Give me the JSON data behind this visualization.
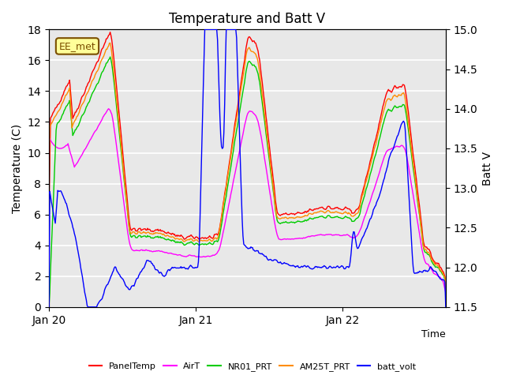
{
  "title": "Temperature and Batt V",
  "xlabel": "Time",
  "ylabel_left": "Temperature (C)",
  "ylabel_right": "Batt V",
  "ylim_left": [
    0,
    18
  ],
  "ylim_right": [
    11.5,
    15.0
  ],
  "yticks_left": [
    0,
    2,
    4,
    6,
    8,
    10,
    12,
    14,
    16,
    18
  ],
  "yticks_right": [
    11.5,
    12.0,
    12.5,
    13.0,
    13.5,
    14.0,
    14.5,
    15.0
  ],
  "xtick_labels": [
    "Jan 20",
    "Jan 21",
    "Jan 22"
  ],
  "xtick_positions": [
    0,
    1,
    2
  ],
  "annotation_text": "EE_met",
  "annotation_color": "#7B4F00",
  "annotation_bg": "#FFFF99",
  "series_colors": {
    "PanelTemp": "#FF0000",
    "AirT": "#FF00FF",
    "NR01_PRT": "#00CC00",
    "AM25T_PRT": "#FF8C00",
    "batt_volt": "#0000FF"
  },
  "legend_entries": [
    "PanelTemp",
    "AirT",
    "NR01_PRT",
    "AM25T_PRT",
    "batt_volt"
  ],
  "bg_color": "#FFFFFF",
  "plot_bg_color": "#E8E8E8",
  "grid_color": "#FFFFFF",
  "alt_band_color": "#D8D8D8",
  "n_points": 500
}
